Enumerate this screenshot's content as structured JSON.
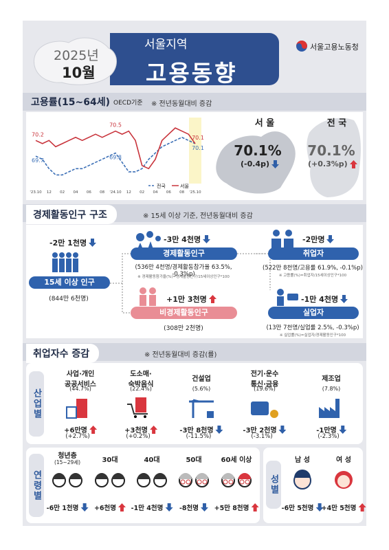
{
  "header": {
    "year": "2025년",
    "month": "10월",
    "region": "서울지역",
    "title": "고용동향",
    "agency": "서울고용노동청"
  },
  "employment_rate": {
    "title": "고용률(15~64세)",
    "basis": "OECD기준",
    "note": "※ 전년동월대비 증감",
    "seoul": {
      "name": "서 울",
      "rate": "70.1%",
      "change": "(-0.4p)"
    },
    "national": {
      "name": "전 국",
      "rate": "70.1%",
      "change": "(+0.3%p)"
    }
  },
  "chart_data": {
    "type": "line",
    "categories": [
      "'23.10",
      null,
      "12",
      null,
      "02",
      null,
      "04",
      null,
      "06",
      null,
      "08",
      null,
      "'24.10",
      null,
      "12",
      null,
      "02",
      null,
      "04",
      null,
      "06",
      null,
      "08",
      null,
      "'25.10"
    ],
    "series": [
      {
        "name": "전국",
        "color": "#3b6fb6",
        "line_style": "dashed",
        "values": [
          69.7,
          69.6,
          69.3,
          69.1,
          69.1,
          69.2,
          69.3,
          69.3,
          69.4,
          69.5,
          69.6,
          69.7,
          69.8,
          69.5,
          69.2,
          69.2,
          69.3,
          69.6,
          69.8,
          70.0,
          70.1,
          70.2,
          70.3,
          70.2,
          70.1
        ]
      },
      {
        "name": "서울",
        "color": "#c8323a",
        "line_style": "solid",
        "values": [
          70.2,
          70.1,
          70.2,
          70.0,
          70.1,
          70.2,
          70.3,
          70.2,
          70.3,
          70.4,
          70.3,
          70.4,
          70.5,
          70.4,
          70.5,
          70.2,
          69.4,
          69.3,
          69.6,
          70.2,
          70.4,
          70.6,
          70.5,
          70.4,
          70.1
        ]
      }
    ],
    "ylim": [
      69.0,
      70.8
    ],
    "grid": false,
    "legend": "bottom-right"
  },
  "structure": {
    "title": "경제활동인구 구조",
    "note": "※ 15세 이상 기준,  전년동월대비 증감",
    "population": {
      "label": "15세 이상 인구",
      "change": "-2만 1천명",
      "total": "(844만 6천명)"
    },
    "active": {
      "label": "경제활동인구",
      "change": "-3만 4천명",
      "detail": "(536만 4천명/경제활동참가율 63.5%, -0.3%p)",
      "footnote": "※ 경제활동참가율(%)=경제활동인구/15세이상인구*100"
    },
    "inactive": {
      "label": "비경제활동인구",
      "change": "+1만 3천명",
      "total": "(308만 2천명)"
    },
    "employed": {
      "label": "취업자",
      "change": "-2만명",
      "detail": "(522만 8천명/고용률 61.9%, -0.1%p)",
      "footnote": "※ 고용률(%)=취업자/15세이상인구*100"
    },
    "unemployed": {
      "label": "실업자",
      "change": "-1만 4천명",
      "detail": "(13만 7천명/실업률 2.5%, -0.3%p)",
      "footnote": "※ 실업률(%)=실업자/경제활동인구*100"
    }
  },
  "employment_change": {
    "title": "취업자수 증감",
    "note": "※ 전년동월대비 증감(률)",
    "industry": {
      "label": "산업별",
      "items": [
        {
          "name": [
            "사업·개인",
            "공공서비스"
          ],
          "share": "(44.7%)",
          "change": "+6만명",
          "rate": "(+2.7%)"
        },
        {
          "name": [
            "도소매·",
            "숙박음식"
          ],
          "share": "(22.4%)",
          "change": "+3천명",
          "rate": "(+0.2%)"
        },
        {
          "name": [
            "건설업"
          ],
          "share": "(5.6%)",
          "change": "-3만 8천명",
          "rate": "(-11.5%)"
        },
        {
          "name": [
            "전기·운수",
            "통신·금융"
          ],
          "share": "(19.6%)",
          "change": "-3만 2천명",
          "rate": "(-3.1%)"
        },
        {
          "name": [
            "제조업"
          ],
          "share": "(7.8%)",
          "change": "-1만명",
          "rate": "(-2.3%)"
        }
      ]
    },
    "age": {
      "label": "연령별",
      "items": [
        {
          "name": "청년층",
          "sub": "(15~29세)",
          "change": "-6만 1천명"
        },
        {
          "name": "30대",
          "change": "+6천명"
        },
        {
          "name": "40대",
          "change": "-1만 4천명"
        },
        {
          "name": "50대",
          "change": "-8천명"
        },
        {
          "name": "60세 이상",
          "change": "+5만 8천명"
        }
      ]
    },
    "gender": {
      "label": "성별",
      "items": [
        {
          "name": "남 성",
          "change": "-6만 5천명"
        },
        {
          "name": "여 성",
          "change": "+4만 5천명"
        }
      ]
    }
  }
}
